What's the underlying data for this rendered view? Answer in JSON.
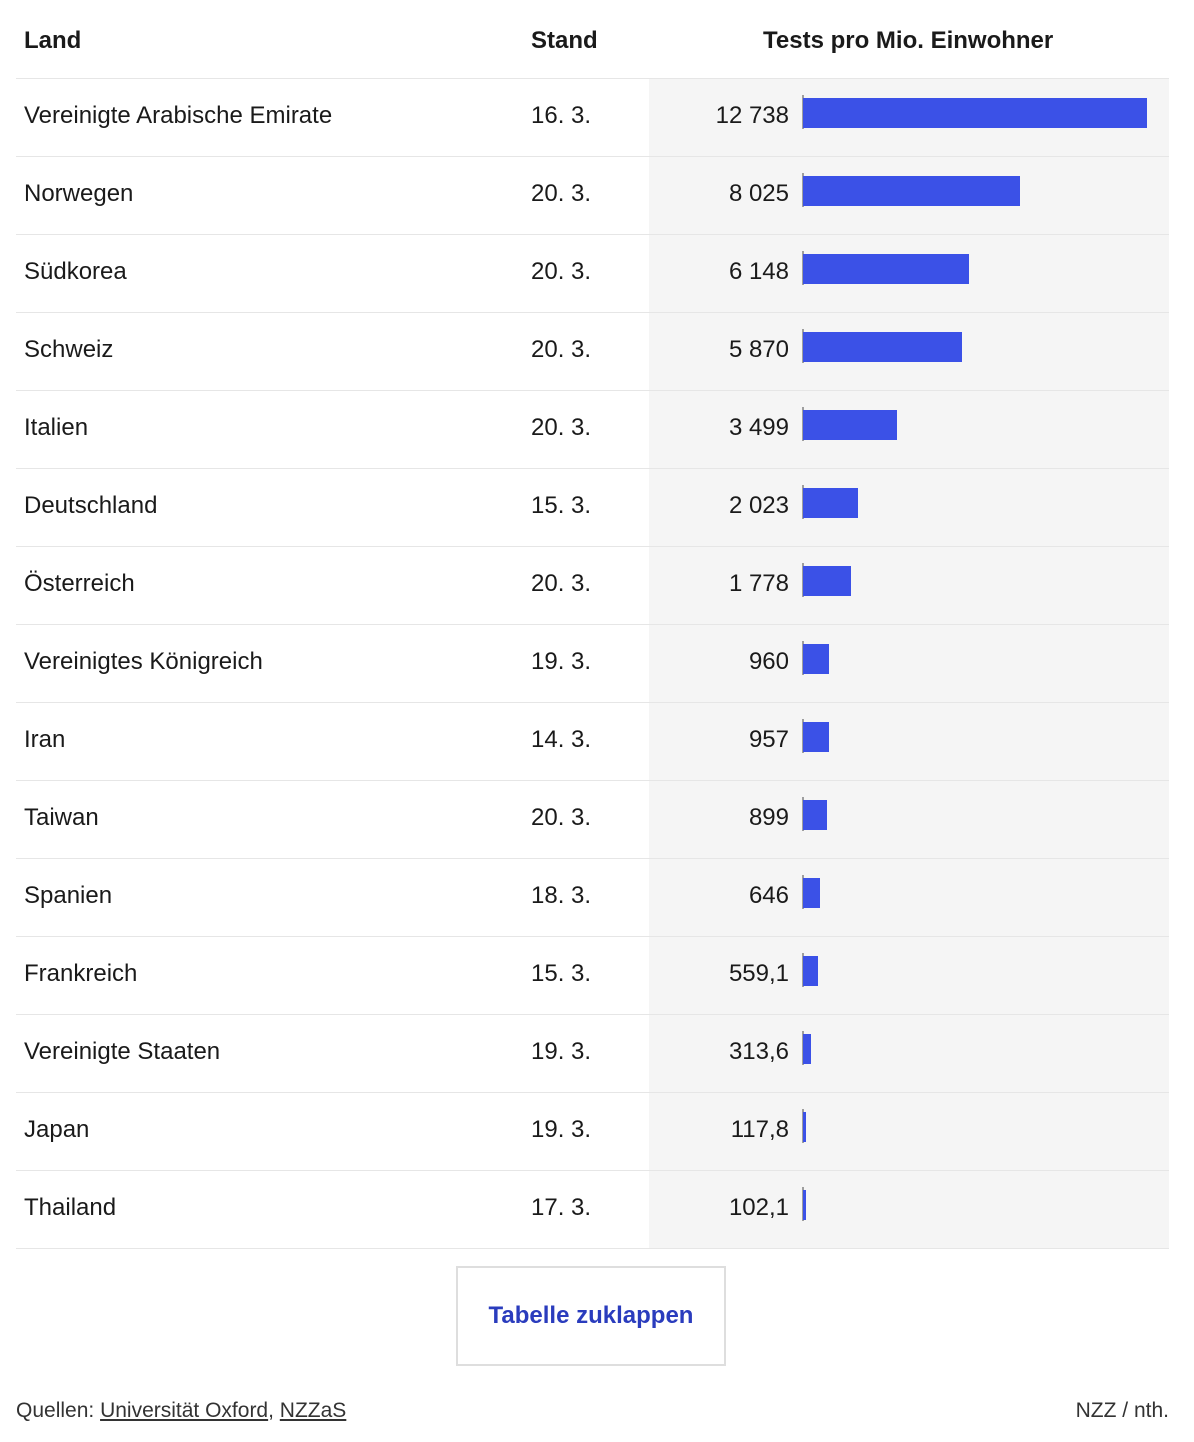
{
  "chart_data": {
    "type": "table",
    "columns": [
      "Land",
      "Stand",
      "Tests pro Mio. Einwohner"
    ],
    "rows": [
      {
        "land": "Vereinigte Arabische Emirate",
        "stand": "16. 3.",
        "value_label": "12 738",
        "value": 12738
      },
      {
        "land": "Norwegen",
        "stand": "20. 3.",
        "value_label": "8 025",
        "value": 8025
      },
      {
        "land": "Südkorea",
        "stand": "20. 3.",
        "value_label": "6 148",
        "value": 6148
      },
      {
        "land": "Schweiz",
        "stand": "20. 3.",
        "value_label": "5 870",
        "value": 5870
      },
      {
        "land": "Italien",
        "stand": "20. 3.",
        "value_label": "3 499",
        "value": 3499
      },
      {
        "land": "Deutschland",
        "stand": "15. 3.",
        "value_label": "2 023",
        "value": 2023
      },
      {
        "land": "Österreich",
        "stand": "20. 3.",
        "value_label": "1 778",
        "value": 1778
      },
      {
        "land": "Vereinigtes Königreich",
        "stand": "19. 3.",
        "value_label": "960",
        "value": 960
      },
      {
        "land": "Iran",
        "stand": "14. 3.",
        "value_label": "957",
        "value": 957
      },
      {
        "land": "Taiwan",
        "stand": "20. 3.",
        "value_label": "899",
        "value": 899
      },
      {
        "land": "Spanien",
        "stand": "18. 3.",
        "value_label": "646",
        "value": 646
      },
      {
        "land": "Frankreich",
        "stand": "15. 3.",
        "value_label": "559,1",
        "value": 559.1
      },
      {
        "land": "Vereinigte Staaten",
        "stand": "19. 3.",
        "value_label": "313,6",
        "value": 313.6
      },
      {
        "land": "Japan",
        "stand": "19. 3.",
        "value_label": "117,8",
        "value": 117.8
      },
      {
        "land": "Thailand",
        "stand": "17. 3.",
        "value_label": "102,1",
        "value": 102.1
      }
    ],
    "bar_color": "#3b51e7",
    "xlim": [
      0,
      12738
    ]
  },
  "toggle": {
    "label": "Tabelle zuklappen"
  },
  "footer": {
    "sources_prefix": "Quellen: ",
    "sources": [
      "Universität Oxford",
      "NZZaS"
    ],
    "separator": ", ",
    "credit": "NZZ / nth."
  }
}
